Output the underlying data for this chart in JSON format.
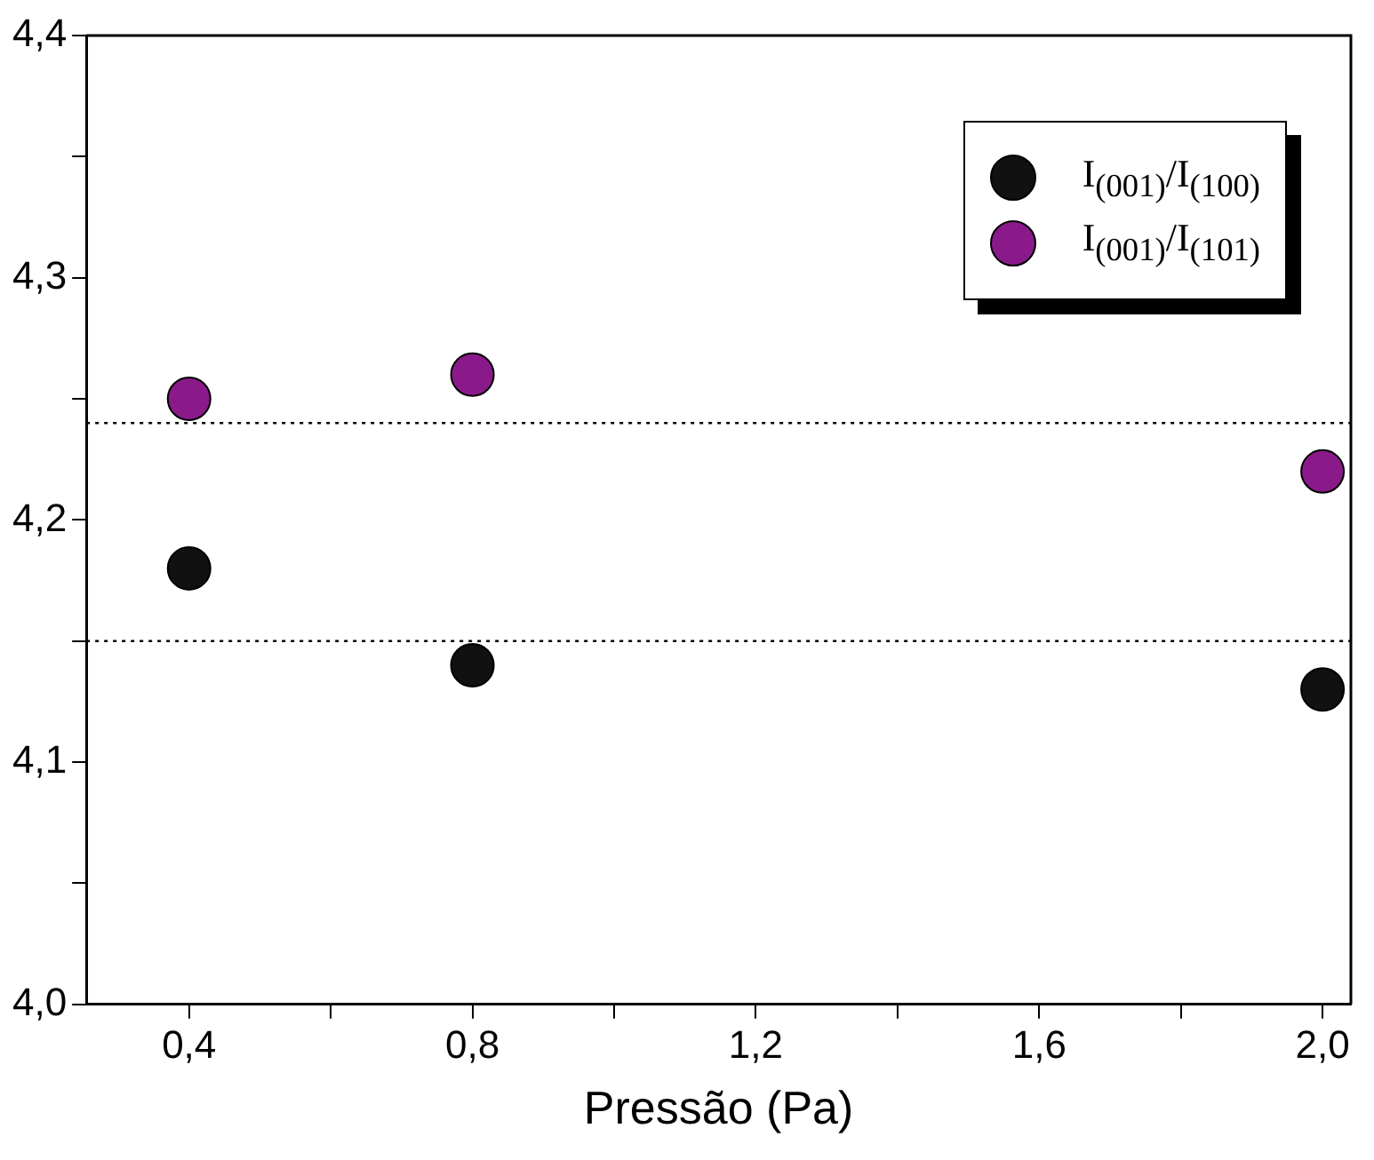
{
  "chart_data": {
    "type": "scatter",
    "xlabel": "Pressão (Pa)",
    "x": [
      0.4,
      0.8,
      2.0
    ],
    "series": [
      {
        "name": "I$_{(001)}$/I$_{(100)}$",
        "color": "#111111",
        "values": [
          4.18,
          4.14,
          4.13
        ]
      },
      {
        "name": "I$_{(001)}$/I$_{(101)}$",
        "color": "#8a1a8a",
        "values": [
          4.25,
          4.26,
          4.22
        ]
      }
    ],
    "xlim": [
      0.255,
      2.04
    ],
    "xticks": [
      {
        "value": 0.4,
        "label": "0,4"
      },
      {
        "value": 0.6,
        "label": null
      },
      {
        "value": 0.8,
        "label": "0,8"
      },
      {
        "value": 1.0,
        "label": null
      },
      {
        "value": 1.2,
        "label": "1,2"
      },
      {
        "value": 1.4,
        "label": null
      },
      {
        "value": 1.6,
        "label": "1,6"
      },
      {
        "value": 1.8,
        "label": null
      },
      {
        "value": 2.0,
        "label": "2,0"
      }
    ],
    "ylim": [
      4.0,
      4.4
    ],
    "yticks": [
      {
        "value": 4.0,
        "label": "4,0"
      },
      {
        "value": 4.05,
        "label": null
      },
      {
        "value": 4.1,
        "label": "4,1"
      },
      {
        "value": 4.15,
        "label": null
      },
      {
        "value": 4.2,
        "label": "4,2"
      },
      {
        "value": 4.25,
        "label": null
      },
      {
        "value": 4.3,
        "label": "4,3"
      },
      {
        "value": 4.35,
        "label": null
      },
      {
        "value": 4.4,
        "label": "4,4"
      }
    ],
    "ref_lines": [
      {
        "axis": "y",
        "value": 4.24,
        "color": "#000000",
        "line_style": "dotted"
      },
      {
        "axis": "y",
        "value": 4.15,
        "color": "#000000",
        "line_style": "dotted"
      }
    ],
    "marker": "circle",
    "grid": false,
    "legend": "top right"
  }
}
